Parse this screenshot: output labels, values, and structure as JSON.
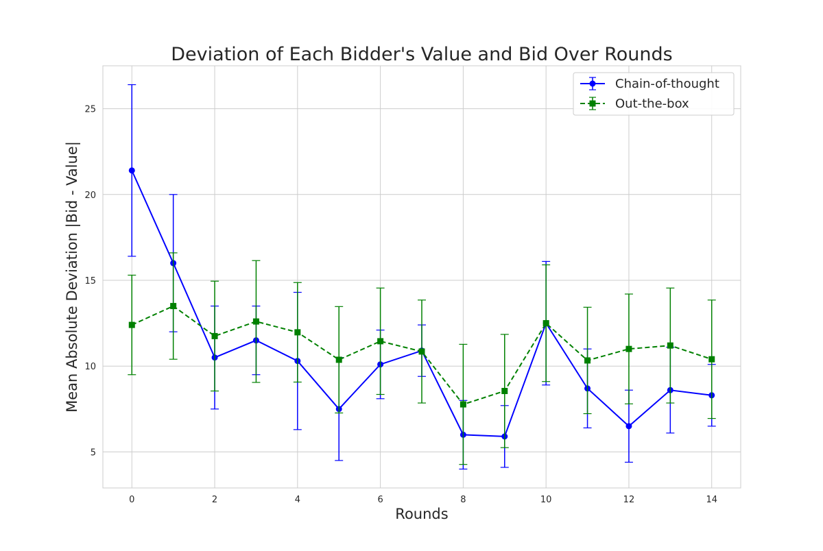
{
  "chart_data": {
    "type": "line",
    "title": "Deviation of Each Bidder's Value and Bid Over Rounds",
    "xlabel": "Rounds",
    "ylabel": "Mean Absolute Deviation |Bid - Value|",
    "xlim": [
      -0.7,
      14.7
    ],
    "ylim": [
      2.9,
      27.5
    ],
    "x_ticks": [
      0,
      2,
      4,
      6,
      8,
      10,
      12,
      14
    ],
    "y_ticks": [
      5,
      10,
      15,
      20,
      25
    ],
    "grid": true,
    "legend_position": "top-right",
    "x": [
      0,
      1,
      2,
      3,
      4,
      5,
      6,
      7,
      8,
      9,
      10,
      11,
      12,
      13,
      14
    ],
    "series": [
      {
        "name": "Chain-of-thought",
        "color": "#0000ff",
        "marker": "circle",
        "line_style": "solid",
        "values": [
          21.4,
          16.0,
          10.5,
          11.5,
          10.3,
          7.5,
          10.1,
          10.9,
          6.0,
          5.9,
          12.5,
          8.7,
          6.5,
          8.6,
          8.3
        ],
        "error": [
          5.0,
          4.0,
          3.0,
          2.0,
          4.0,
          3.0,
          2.0,
          1.5,
          2.0,
          1.8,
          3.6,
          2.3,
          2.1,
          2.5,
          1.8
        ]
      },
      {
        "name": "Out-the-box",
        "color": "#008000",
        "marker": "square",
        "line_style": "dashed",
        "values": [
          12.4,
          13.5,
          11.75,
          12.6,
          11.97,
          10.37,
          11.45,
          10.85,
          7.77,
          8.55,
          12.5,
          10.33,
          11.0,
          11.2,
          10.4
        ],
        "error": [
          2.9,
          3.1,
          3.2,
          3.55,
          2.9,
          3.1,
          3.1,
          3.0,
          3.5,
          3.3,
          3.4,
          3.1,
          3.2,
          3.35,
          3.45
        ]
      }
    ]
  }
}
